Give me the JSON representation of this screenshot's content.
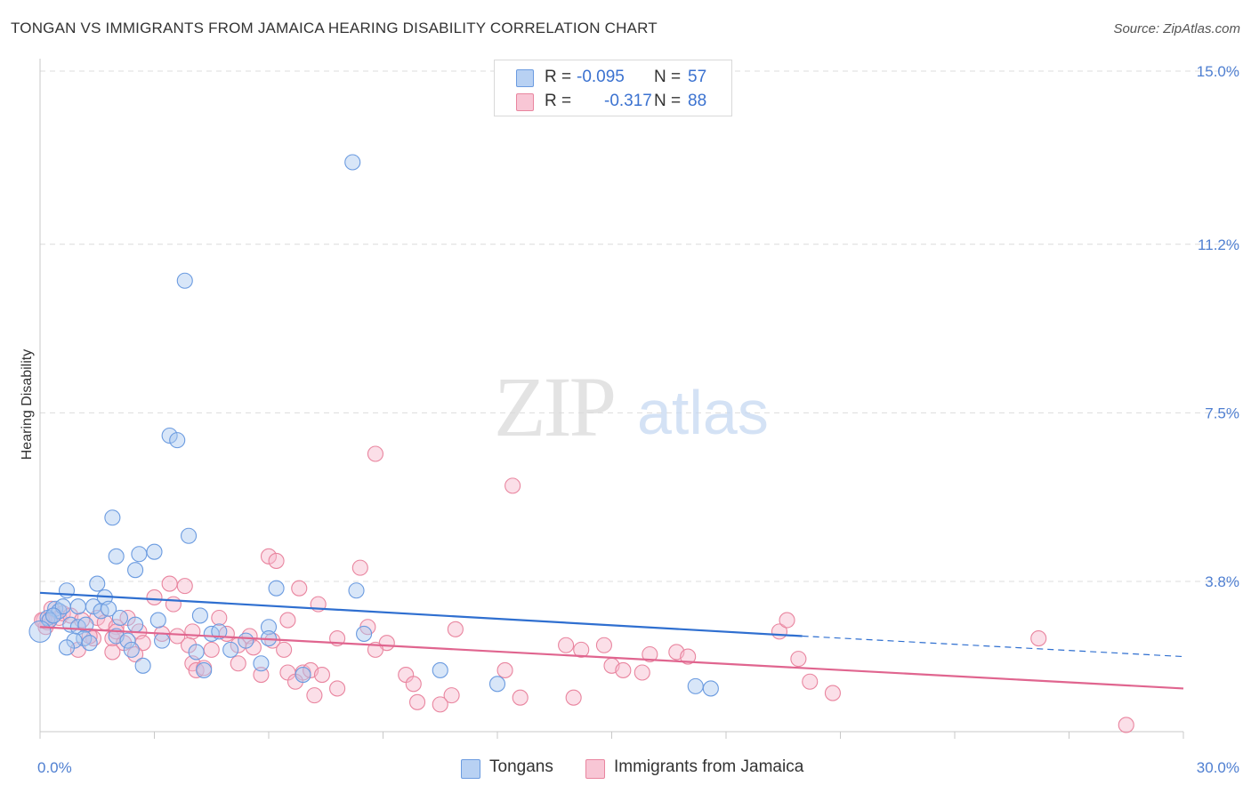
{
  "title": "TONGAN VS IMMIGRANTS FROM JAMAICA HEARING DISABILITY CORRELATION CHART",
  "source": "Source: ZipAtlas.com",
  "watermark": {
    "zip": "ZIP",
    "atlas": "atlas"
  },
  "legend": {
    "rows": [
      {
        "r_label": "R =",
        "r_value": "-0.095",
        "n_label": "N =",
        "n_value": "57"
      },
      {
        "r_label": "R =",
        "r_value": "-0.317",
        "n_label": "N =",
        "n_value": "88"
      }
    ]
  },
  "bottom_legend": [
    "Tongans",
    "Immigrants from Jamaica"
  ],
  "colors": {
    "blue_fill": "#a9c7f0",
    "blue_stroke": "#6b9be0",
    "blue_line": "#2f6fd0",
    "pink_fill": "#f6b8cb",
    "pink_stroke": "#e9859f",
    "pink_line": "#e0658f",
    "grid": "#dcdcdc",
    "tick_label": "#4f7fd1"
  },
  "chart_data": {
    "type": "scatter",
    "title": "TONGAN VS IMMIGRANTS FROM JAMAICA HEARING DISABILITY CORRELATION CHART",
    "xlabel": "",
    "ylabel": "Hearing Disability",
    "xlim": [
      0,
      30
    ],
    "ylim": [
      0,
      15.4
    ],
    "x_ticks": [
      {
        "value": 0,
        "label": "0.0%"
      },
      {
        "value": 30,
        "label": "30.0%"
      }
    ],
    "y_ticks": [
      {
        "value": 3.8,
        "label": "3.8%"
      },
      {
        "value": 7.5,
        "label": "7.5%"
      },
      {
        "value": 11.2,
        "label": "11.2%"
      },
      {
        "value": 15.0,
        "label": "15.0%"
      }
    ],
    "series": [
      {
        "name": "Tongans",
        "color": "#6b9be0",
        "trend": {
          "x0": 0,
          "y0": 3.55,
          "x1": 20,
          "y1": 2.6,
          "dash_x1": 30,
          "dash_y1": 2.15
        },
        "points": [
          [
            8.2,
            13.0
          ],
          [
            3.8,
            10.4
          ],
          [
            3.4,
            7.0
          ],
          [
            3.6,
            6.9
          ],
          [
            1.9,
            5.2
          ],
          [
            3.9,
            4.8
          ],
          [
            2.0,
            4.35
          ],
          [
            2.6,
            4.4
          ],
          [
            3.0,
            4.45
          ],
          [
            2.5,
            4.05
          ],
          [
            0.7,
            3.6
          ],
          [
            1.5,
            3.75
          ],
          [
            6.2,
            3.65
          ],
          [
            8.3,
            3.6
          ],
          [
            1.7,
            3.45
          ],
          [
            0.4,
            3.2
          ],
          [
            0.5,
            3.15
          ],
          [
            0.6,
            3.25
          ],
          [
            1.0,
            3.25
          ],
          [
            1.4,
            3.25
          ],
          [
            1.6,
            3.15
          ],
          [
            1.8,
            3.2
          ],
          [
            0.2,
            3.0
          ],
          [
            0.25,
            2.95
          ],
          [
            0.35,
            3.05
          ],
          [
            0.8,
            2.85
          ],
          [
            1.0,
            2.8
          ],
          [
            1.2,
            2.85
          ],
          [
            2.1,
            3.0
          ],
          [
            2.5,
            2.85
          ],
          [
            3.1,
            2.95
          ],
          [
            4.2,
            3.05
          ],
          [
            6.0,
            2.8
          ],
          [
            1.15,
            2.55
          ],
          [
            1.3,
            2.45
          ],
          [
            0.9,
            2.5
          ],
          [
            2.0,
            2.6
          ],
          [
            2.3,
            2.5
          ],
          [
            3.2,
            2.5
          ],
          [
            4.5,
            2.65
          ],
          [
            4.7,
            2.7
          ],
          [
            5.4,
            2.5
          ],
          [
            6.0,
            2.55
          ],
          [
            8.5,
            2.65
          ],
          [
            0.7,
            2.35
          ],
          [
            2.4,
            2.3
          ],
          [
            4.1,
            2.25
          ],
          [
            5.0,
            2.3
          ],
          [
            5.8,
            2.0
          ],
          [
            2.7,
            1.95
          ],
          [
            4.3,
            1.85
          ],
          [
            6.9,
            1.75
          ],
          [
            10.5,
            1.85
          ],
          [
            12.0,
            1.55
          ],
          [
            17.2,
            1.5
          ],
          [
            17.6,
            1.45
          ],
          [
            0.0,
            2.7
          ]
        ]
      },
      {
        "name": "Immigrants from Jamaica",
        "color": "#e9859f",
        "trend": {
          "x0": 0,
          "y0": 2.8,
          "x1": 30,
          "y1": 1.45
        },
        "points": [
          [
            8.8,
            6.6
          ],
          [
            12.4,
            5.9
          ],
          [
            6.0,
            4.35
          ],
          [
            6.2,
            4.25
          ],
          [
            8.4,
            4.1
          ],
          [
            3.4,
            3.75
          ],
          [
            3.8,
            3.7
          ],
          [
            6.8,
            3.65
          ],
          [
            3.0,
            3.45
          ],
          [
            3.5,
            3.3
          ],
          [
            7.3,
            3.3
          ],
          [
            0.3,
            3.2
          ],
          [
            0.5,
            3.0
          ],
          [
            0.6,
            3.1
          ],
          [
            0.1,
            2.95
          ],
          [
            0.2,
            2.9
          ],
          [
            0.8,
            3.05
          ],
          [
            1.1,
            2.95
          ],
          [
            1.5,
            3.0
          ],
          [
            2.3,
            3.0
          ],
          [
            1.7,
            2.9
          ],
          [
            2.0,
            2.8
          ],
          [
            0.15,
            2.8
          ],
          [
            4.7,
            3.0
          ],
          [
            6.5,
            2.95
          ],
          [
            8.6,
            2.8
          ],
          [
            10.9,
            2.75
          ],
          [
            19.4,
            2.7
          ],
          [
            19.6,
            2.95
          ],
          [
            2.6,
            2.7
          ],
          [
            3.2,
            2.65
          ],
          [
            3.6,
            2.6
          ],
          [
            4.0,
            2.7
          ],
          [
            4.9,
            2.65
          ],
          [
            5.5,
            2.6
          ],
          [
            6.1,
            2.5
          ],
          [
            7.8,
            2.55
          ],
          [
            9.1,
            2.45
          ],
          [
            1.9,
            2.55
          ],
          [
            2.2,
            2.45
          ],
          [
            2.7,
            2.45
          ],
          [
            1.4,
            2.55
          ],
          [
            3.9,
            2.4
          ],
          [
            5.2,
            2.4
          ],
          [
            5.6,
            2.35
          ],
          [
            6.4,
            2.3
          ],
          [
            4.5,
            2.3
          ],
          [
            8.8,
            2.3
          ],
          [
            13.8,
            2.4
          ],
          [
            14.2,
            2.3
          ],
          [
            14.8,
            2.4
          ],
          [
            26.2,
            2.55
          ],
          [
            16.0,
            2.2
          ],
          [
            16.7,
            2.25
          ],
          [
            17.0,
            2.15
          ],
          [
            1.9,
            2.25
          ],
          [
            2.5,
            2.2
          ],
          [
            4.0,
            2.0
          ],
          [
            5.2,
            2.0
          ],
          [
            4.1,
            1.85
          ],
          [
            4.3,
            1.9
          ],
          [
            5.8,
            1.75
          ],
          [
            6.5,
            1.8
          ],
          [
            6.9,
            1.8
          ],
          [
            7.1,
            1.85
          ],
          [
            7.4,
            1.75
          ],
          [
            9.6,
            1.75
          ],
          [
            12.2,
            1.85
          ],
          [
            15.0,
            1.95
          ],
          [
            15.3,
            1.85
          ],
          [
            15.8,
            1.8
          ],
          [
            19.9,
            2.1
          ],
          [
            6.7,
            1.6
          ],
          [
            9.8,
            1.55
          ],
          [
            7.8,
            1.45
          ],
          [
            20.2,
            1.6
          ],
          [
            7.2,
            1.3
          ],
          [
            10.8,
            1.3
          ],
          [
            12.6,
            1.25
          ],
          [
            14.0,
            1.25
          ],
          [
            20.8,
            1.35
          ],
          [
            9.9,
            1.15
          ],
          [
            10.5,
            1.1
          ],
          [
            28.5,
            0.65
          ],
          [
            0.05,
            2.95
          ],
          [
            1.0,
            2.3
          ],
          [
            2.0,
            2.7
          ],
          [
            1.3,
            2.6
          ]
        ]
      }
    ]
  }
}
